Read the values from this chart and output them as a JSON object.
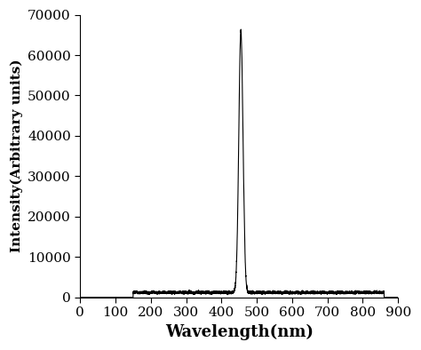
{
  "xlabel": "Wavelength(nm)",
  "ylabel": "Intensity(Arbitrary units)",
  "xlim": [
    0,
    900
  ],
  "ylim": [
    0,
    70000
  ],
  "xticks": [
    0,
    100,
    200,
    300,
    400,
    500,
    600,
    700,
    800,
    900
  ],
  "yticks": [
    0,
    10000,
    20000,
    30000,
    40000,
    50000,
    60000,
    70000
  ],
  "peak_wavelength": 455,
  "peak_intensity": 65000,
  "peak_fwhm": 14,
  "baseline_start": 150,
  "baseline_end": 860,
  "baseline_level": 1200,
  "noise_amplitude": 150,
  "line_color": "#000000",
  "line_width": 0.8,
  "background_color": "#ffffff",
  "xlabel_fontsize": 13,
  "ylabel_fontsize": 11,
  "tick_fontsize": 11
}
